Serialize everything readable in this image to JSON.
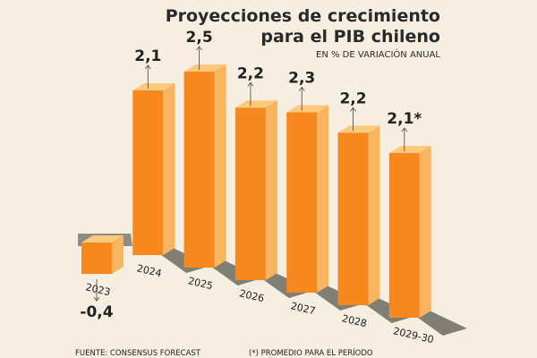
{
  "chart_data": {
    "type": "bar",
    "title_line1": "Proyecciones de crecimiento",
    "title_line2": "para el PIB chileno",
    "subtitle": "EN % DE VARIACIÓN ANUAL",
    "categories": [
      "2023",
      "2024",
      "2025",
      "2026",
      "2027",
      "2028",
      "2029-30"
    ],
    "values": [
      -0.4,
      2.1,
      2.5,
      2.2,
      2.3,
      2.2,
      2.1
    ],
    "value_labels": [
      "-0,4",
      "2,1",
      "2,5",
      "2,2",
      "2,3",
      "2,2",
      "2,1*"
    ],
    "xlabel": "",
    "ylabel": "% de variación anual",
    "source": "FUENTE: CONSENSUS FORECAST",
    "note": "(*) PROMEDIO PARA EL PERÍODO",
    "colors": {
      "front": "#f7881e",
      "side": "#f9b45f",
      "top": "#fbc97a",
      "shadow": "#6b6b63",
      "background": "#f6efe1"
    }
  }
}
